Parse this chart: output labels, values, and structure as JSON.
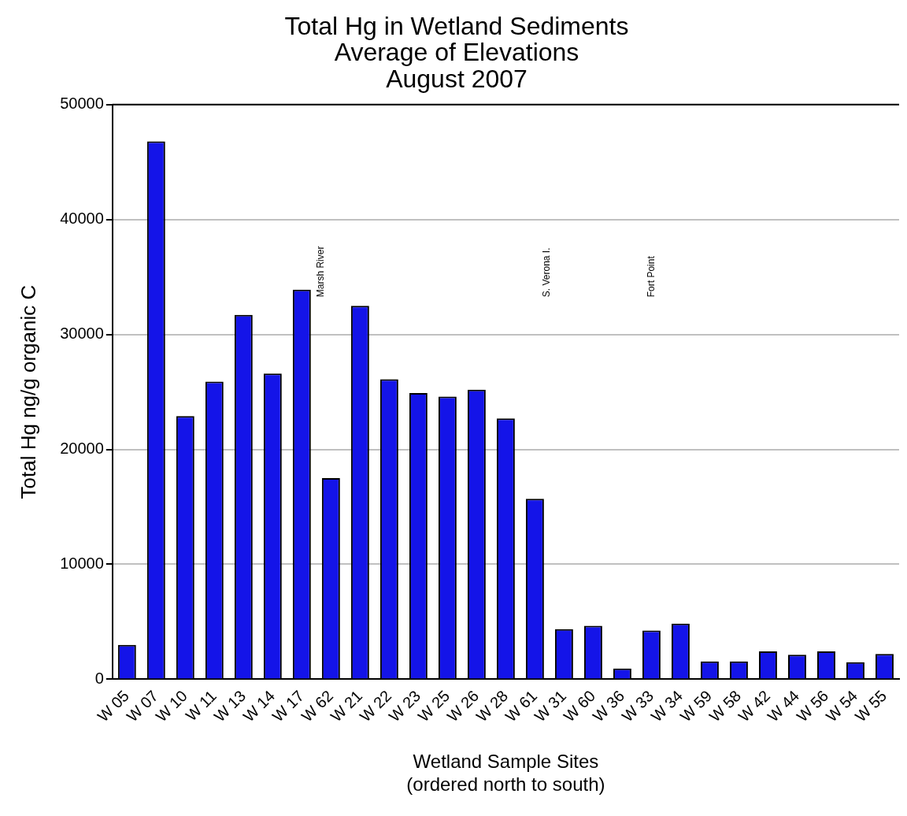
{
  "chart_data": {
    "type": "bar",
    "title": [
      "Total Hg in Wetland Sediments",
      "Average of Elevations",
      "August 2007"
    ],
    "xlabel": [
      "Wetland Sample Sites",
      "(ordered north to south)"
    ],
    "ylabel": "Total Hg ng/g organic C",
    "categories": [
      "W 05",
      "W 07",
      "W 10",
      "W 11",
      "W 13",
      "W 14",
      "W 17",
      "W 62",
      "W 21",
      "W 22",
      "W 23",
      "W 25",
      "W 26",
      "W 28",
      "W 61",
      "W 31",
      "W 60",
      "W 36",
      "W 33",
      "W 34",
      "W 59",
      "W 58",
      "W 42",
      "W 44",
      "W 56",
      "W 54",
      "W 55"
    ],
    "values": [
      3000,
      46800,
      22900,
      25900,
      31700,
      26600,
      33900,
      17500,
      32500,
      26100,
      24900,
      24600,
      25200,
      22700,
      15700,
      4360,
      4650,
      940,
      4240,
      4840,
      1550,
      1550,
      2420,
      2130,
      2420,
      1480,
      2200
    ],
    "color": "#1414e8",
    "ylim": [
      0,
      50000
    ],
    "yticks": [
      0,
      10000,
      20000,
      30000,
      40000,
      50000
    ],
    "grid": "y",
    "legend": false,
    "annotations": [
      "Marsh River",
      "S. Verona I.",
      "Fort Point"
    ]
  }
}
